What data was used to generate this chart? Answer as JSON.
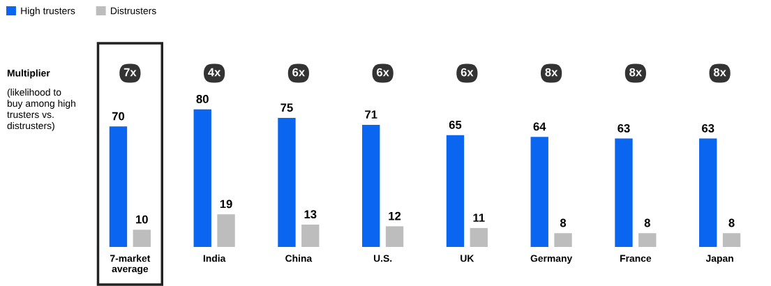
{
  "chart_data": {
    "type": "bar",
    "categories": [
      "7-market\naverage",
      "India",
      "China",
      "U.S.",
      "UK",
      "Germany",
      "France",
      "Japan"
    ],
    "series": [
      {
        "name": "High trusters",
        "color": "#0a66f0",
        "values": [
          70,
          80,
          75,
          71,
          65,
          64,
          63,
          63
        ]
      },
      {
        "name": "Distrusters",
        "color": "#bdbdbd",
        "values": [
          10,
          19,
          13,
          12,
          11,
          8,
          8,
          8
        ]
      }
    ],
    "data_labels": true,
    "legend": "top left",
    "grid": false,
    "annotations": [
      "Multiplier",
      "(likelihood to\nbuy among high\ntrusters vs.\ndistrusters)",
      "7x",
      "4x",
      "6x",
      "6x",
      "6x",
      "8x",
      "8x",
      "8x"
    ]
  }
}
